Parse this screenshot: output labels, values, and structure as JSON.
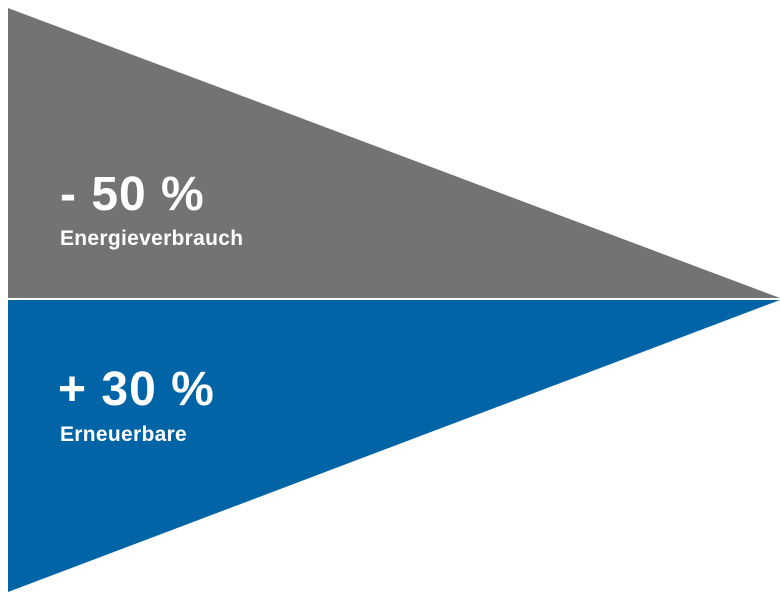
{
  "segments": [
    {
      "value": "- 50 %",
      "label": "Energieverbrauch",
      "color": "#737373"
    },
    {
      "value": "+ 30 %",
      "label": "Erneuerbare",
      "color": "#0064a6"
    }
  ]
}
